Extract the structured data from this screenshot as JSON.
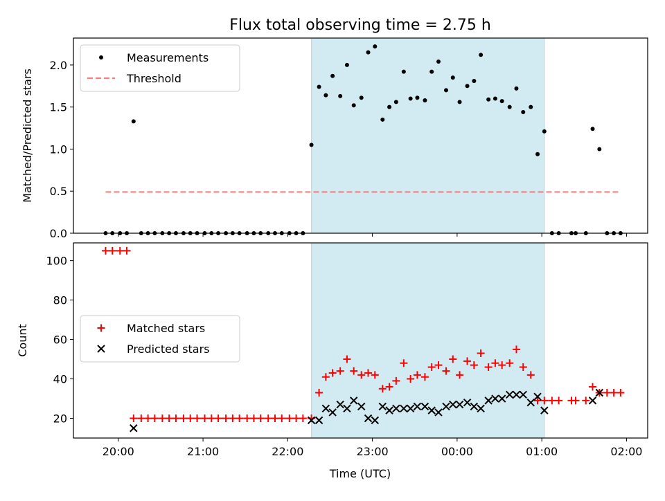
{
  "chart_data": {
    "title": "Flux total observing time = 2.75 h",
    "xlabel": "Time (UTC)",
    "x_unit": "hours UTC (values after midnight expressed as hour + 24)",
    "xlim": [
      19.47,
      26.25
    ],
    "xticks": [
      {
        "value": 20,
        "label": "20:00"
      },
      {
        "value": 21,
        "label": "21:00"
      },
      {
        "value": 22,
        "label": "22:00"
      },
      {
        "value": 23,
        "label": "23:00"
      },
      {
        "value": 24,
        "label": "00:00"
      },
      {
        "value": 25,
        "label": "01:00"
      },
      {
        "value": 26,
        "label": "02:00"
      }
    ],
    "shaded_span": {
      "x0": 22.28,
      "x1": 25.03,
      "color": "#add8e6"
    },
    "panels": [
      {
        "type": "scatter",
        "ylabel": "Matched/Predicted stars",
        "ylim": [
          0,
          2.32
        ],
        "yticks": [
          0.0,
          0.5,
          1.0,
          1.5,
          2.0
        ],
        "ytick_labels": [
          "0.0",
          "0.5",
          "1.0",
          "1.5",
          "2.0"
        ],
        "legend": {
          "placement": "upper left"
        },
        "series": [
          {
            "name": "Measurements",
            "kind": "dots",
            "color": "#000000",
            "points": [
              [
                19.85,
                0
              ],
              [
                19.93,
                0
              ],
              [
                20.02,
                0
              ],
              [
                20.1,
                0
              ],
              [
                20.18,
                1.33
              ],
              [
                20.27,
                0
              ],
              [
                20.35,
                0
              ],
              [
                20.43,
                0
              ],
              [
                20.52,
                0
              ],
              [
                20.6,
                0
              ],
              [
                20.68,
                0
              ],
              [
                20.77,
                0
              ],
              [
                20.85,
                0
              ],
              [
                20.93,
                0
              ],
              [
                21.02,
                0
              ],
              [
                21.1,
                0
              ],
              [
                21.18,
                0
              ],
              [
                21.27,
                0
              ],
              [
                21.35,
                0
              ],
              [
                21.43,
                0
              ],
              [
                21.52,
                0
              ],
              [
                21.6,
                0
              ],
              [
                21.68,
                0
              ],
              [
                21.77,
                0
              ],
              [
                21.85,
                0
              ],
              [
                21.93,
                0
              ],
              [
                22.02,
                0
              ],
              [
                22.1,
                0
              ],
              [
                22.18,
                0
              ],
              [
                22.28,
                1.05
              ],
              [
                22.37,
                1.74
              ],
              [
                22.45,
                1.64
              ],
              [
                22.53,
                1.87
              ],
              [
                22.62,
                1.63
              ],
              [
                22.7,
                2.0
              ],
              [
                22.78,
                1.52
              ],
              [
                22.87,
                1.61
              ],
              [
                22.95,
                2.15
              ],
              [
                23.03,
                2.22
              ],
              [
                23.12,
                1.35
              ],
              [
                23.2,
                1.5
              ],
              [
                23.28,
                1.56
              ],
              [
                23.37,
                1.92
              ],
              [
                23.45,
                1.6
              ],
              [
                23.53,
                1.61
              ],
              [
                23.62,
                1.58
              ],
              [
                23.7,
                1.92
              ],
              [
                23.78,
                2.04
              ],
              [
                23.87,
                1.7
              ],
              [
                23.95,
                1.85
              ],
              [
                24.03,
                1.56
              ],
              [
                24.12,
                1.75
              ],
              [
                24.2,
                1.81
              ],
              [
                24.28,
                2.12
              ],
              [
                24.37,
                1.59
              ],
              [
                24.45,
                1.6
              ],
              [
                24.53,
                1.57
              ],
              [
                24.62,
                1.5
              ],
              [
                24.7,
                1.72
              ],
              [
                24.78,
                1.44
              ],
              [
                24.87,
                1.5
              ],
              [
                24.95,
                0.94
              ],
              [
                25.03,
                1.21
              ],
              [
                25.12,
                0
              ],
              [
                25.2,
                0
              ],
              [
                25.35,
                0
              ],
              [
                25.4,
                0
              ],
              [
                25.52,
                0
              ],
              [
                25.6,
                1.24
              ],
              [
                25.68,
                1.0
              ],
              [
                25.77,
                0
              ],
              [
                25.85,
                0
              ],
              [
                25.93,
                0
              ]
            ]
          },
          {
            "name": "Threshold",
            "kind": "dashed-line",
            "color": "#f08080",
            "x": [
              19.85,
              25.93
            ],
            "y": [
              0.49,
              0.49
            ]
          }
        ]
      },
      {
        "type": "scatter",
        "ylabel": "Count",
        "ylim": [
          10,
          109
        ],
        "yticks": [
          20,
          40,
          60,
          80,
          100
        ],
        "ytick_labels": [
          "20",
          "40",
          "60",
          "80",
          "100"
        ],
        "legend": {
          "placement": "center left"
        },
        "series": [
          {
            "name": "Matched stars",
            "kind": "plus",
            "color": "#ff0000",
            "points": [
              [
                19.85,
                105
              ],
              [
                19.93,
                105
              ],
              [
                20.02,
                105
              ],
              [
                20.1,
                105
              ],
              [
                20.18,
                20
              ],
              [
                20.27,
                20
              ],
              [
                20.35,
                20
              ],
              [
                20.43,
                20
              ],
              [
                20.52,
                20
              ],
              [
                20.6,
                20
              ],
              [
                20.68,
                20
              ],
              [
                20.77,
                20
              ],
              [
                20.85,
                20
              ],
              [
                20.93,
                20
              ],
              [
                21.02,
                20
              ],
              [
                21.1,
                20
              ],
              [
                21.18,
                20
              ],
              [
                21.27,
                20
              ],
              [
                21.35,
                20
              ],
              [
                21.43,
                20
              ],
              [
                21.52,
                20
              ],
              [
                21.6,
                20
              ],
              [
                21.68,
                20
              ],
              [
                21.77,
                20
              ],
              [
                21.85,
                20
              ],
              [
                21.93,
                20
              ],
              [
                22.02,
                20
              ],
              [
                22.1,
                20
              ],
              [
                22.18,
                20
              ],
              [
                22.28,
                20
              ],
              [
                22.37,
                33
              ],
              [
                22.45,
                41
              ],
              [
                22.53,
                43
              ],
              [
                22.62,
                44
              ],
              [
                22.7,
                50
              ],
              [
                22.78,
                44
              ],
              [
                22.87,
                42
              ],
              [
                22.95,
                43
              ],
              [
                23.03,
                42
              ],
              [
                23.12,
                35
              ],
              [
                23.2,
                36
              ],
              [
                23.28,
                39
              ],
              [
                23.37,
                48
              ],
              [
                23.45,
                40
              ],
              [
                23.53,
                42
              ],
              [
                23.62,
                41
              ],
              [
                23.7,
                46
              ],
              [
                23.78,
                47
              ],
              [
                23.87,
                44
              ],
              [
                23.95,
                50
              ],
              [
                24.03,
                42
              ],
              [
                24.12,
                49
              ],
              [
                24.2,
                47
              ],
              [
                24.28,
                53
              ],
              [
                24.37,
                46
              ],
              [
                24.45,
                48
              ],
              [
                24.53,
                47
              ],
              [
                24.62,
                48
              ],
              [
                24.7,
                55
              ],
              [
                24.78,
                46
              ],
              [
                24.87,
                42
              ],
              [
                24.95,
                29
              ],
              [
                25.03,
                29
              ],
              [
                25.12,
                29
              ],
              [
                25.2,
                29
              ],
              [
                25.35,
                29
              ],
              [
                25.4,
                29
              ],
              [
                25.52,
                29
              ],
              [
                25.6,
                36
              ],
              [
                25.68,
                33
              ],
              [
                25.77,
                33
              ],
              [
                25.85,
                33
              ],
              [
                25.93,
                33
              ]
            ]
          },
          {
            "name": "Predicted stars",
            "kind": "cross",
            "color": "#000000",
            "points": [
              [
                20.18,
                15
              ],
              [
                22.28,
                19
              ],
              [
                22.37,
                19
              ],
              [
                22.45,
                25
              ],
              [
                22.53,
                23
              ],
              [
                22.62,
                27
              ],
              [
                22.7,
                25
              ],
              [
                22.78,
                29
              ],
              [
                22.87,
                26
              ],
              [
                22.95,
                20
              ],
              [
                23.03,
                19
              ],
              [
                23.12,
                26
              ],
              [
                23.2,
                24
              ],
              [
                23.28,
                25
              ],
              [
                23.37,
                25
              ],
              [
                23.45,
                25
              ],
              [
                23.53,
                26
              ],
              [
                23.62,
                26
              ],
              [
                23.7,
                24
              ],
              [
                23.78,
                23
              ],
              [
                23.87,
                26
              ],
              [
                23.95,
                27
              ],
              [
                24.03,
                27
              ],
              [
                24.12,
                28
              ],
              [
                24.2,
                26
              ],
              [
                24.28,
                25
              ],
              [
                24.37,
                29
              ],
              [
                24.45,
                30
              ],
              [
                24.53,
                30
              ],
              [
                24.62,
                32
              ],
              [
                24.7,
                32
              ],
              [
                24.78,
                32
              ],
              [
                24.87,
                28
              ],
              [
                24.95,
                31
              ],
              [
                25.03,
                24
              ],
              [
                25.6,
                29
              ],
              [
                25.68,
                33
              ]
            ]
          }
        ]
      }
    ]
  }
}
